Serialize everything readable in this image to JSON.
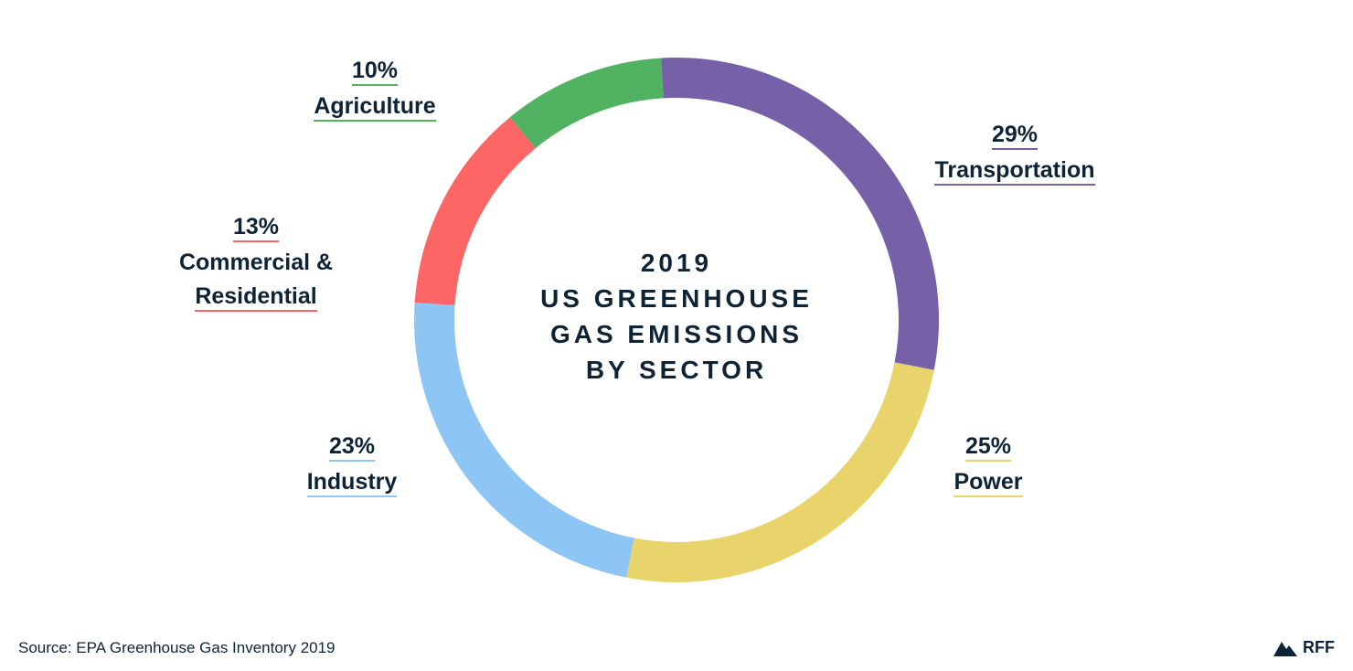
{
  "chart_data": {
    "type": "pie",
    "style": "donut",
    "title": [
      "2019",
      "US GREENHOUSE",
      "GAS EMISSIONS",
      "BY SECTOR"
    ],
    "slices": [
      {
        "label": "Transportation",
        "label_lines": [
          "Transportation"
        ],
        "percent_label": "29%",
        "value": 29,
        "color": "#7660a8"
      },
      {
        "label": "Power",
        "label_lines": [
          "Power"
        ],
        "percent_label": "25%",
        "value": 25,
        "color": "#e8d46b"
      },
      {
        "label": "Industry",
        "label_lines": [
          "Industry"
        ],
        "percent_label": "23%",
        "value": 23,
        "color": "#8dc5f4"
      },
      {
        "label": "Commercial & Residential",
        "label_lines": [
          "Commercial &",
          "Residential"
        ],
        "percent_label": "13%",
        "value": 13,
        "color": "#fd6664"
      },
      {
        "label": "Agriculture",
        "label_lines": [
          "Agriculture"
        ],
        "percent_label": "10%",
        "value": 10,
        "color": "#51b262"
      }
    ]
  },
  "footer": {
    "source": "Source: EPA Greenhouse Gas Inventory 2019",
    "brand": "RFF"
  },
  "colors": {
    "text": "#0f2336"
  }
}
